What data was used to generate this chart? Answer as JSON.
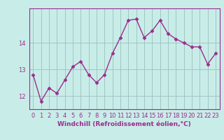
{
  "x": [
    0,
    1,
    2,
    3,
    4,
    5,
    6,
    7,
    8,
    9,
    10,
    11,
    12,
    13,
    14,
    15,
    16,
    17,
    18,
    19,
    20,
    21,
    22,
    23
  ],
  "y": [
    12.8,
    11.8,
    12.3,
    12.1,
    12.6,
    13.1,
    13.3,
    12.8,
    12.5,
    12.8,
    13.6,
    14.2,
    14.85,
    14.9,
    14.2,
    14.45,
    14.85,
    14.35,
    14.15,
    14.0,
    13.85,
    13.85,
    13.2,
    13.6
  ],
  "line_color": "#9B2D8E",
  "marker": "D",
  "markersize": 2.5,
  "linewidth": 1.0,
  "bg_color": "#C8EDE8",
  "grid_color": "#9BBFBB",
  "xlabel": "Windchill (Refroidissement éolien,°C)",
  "xlabel_fontsize": 6.5,
  "tick_fontsize": 6,
  "xlim": [
    -0.5,
    23.5
  ],
  "ylim": [
    11.5,
    15.3
  ],
  "yticks": [
    12,
    13,
    14
  ],
  "xticks": [
    0,
    1,
    2,
    3,
    4,
    5,
    6,
    7,
    8,
    9,
    10,
    11,
    12,
    13,
    14,
    15,
    16,
    17,
    18,
    19,
    20,
    21,
    22,
    23
  ],
  "xtick_labels": [
    "0",
    "1",
    "2",
    "3",
    "4",
    "5",
    "6",
    "7",
    "8",
    "9",
    "10",
    "11",
    "12",
    "13",
    "14",
    "15",
    "16",
    "17",
    "18",
    "19",
    "20",
    "21",
    "22",
    "23"
  ]
}
